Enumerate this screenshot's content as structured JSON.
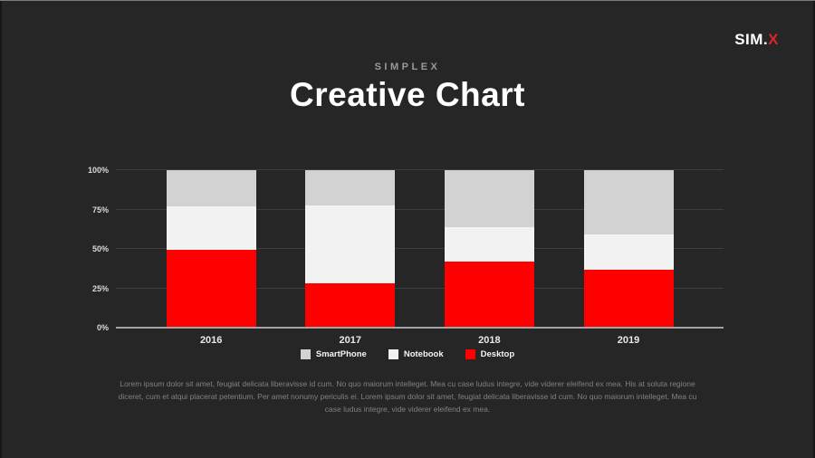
{
  "logo": {
    "prefix": "SIM.",
    "accent": "X"
  },
  "header": {
    "eyebrow": "SIMPLEX",
    "title": "Creative Chart"
  },
  "chart_data": {
    "type": "bar",
    "stacked": true,
    "percent_stacked": true,
    "title": "Creative Chart",
    "categories": [
      "2016",
      "2017",
      "2018",
      "2019"
    ],
    "series": [
      {
        "name": "SmartPhone",
        "color": "#d2d2d2",
        "values": [
          23.0,
          22.5,
          36.1,
          40.7
        ]
      },
      {
        "name": "Notebook",
        "color": "#f2f2f2",
        "values": [
          27.6,
          49.4,
          21.7,
          22.8
        ]
      },
      {
        "name": "Desktop",
        "color": "#fe0000",
        "values": [
          49.4,
          28.1,
          42.2,
          36.5
        ]
      }
    ],
    "y_ticks": [
      "0%",
      "25%",
      "50%",
      "75%",
      "100%"
    ],
    "ylim": [
      0,
      100
    ],
    "grid": true,
    "legend_position": "bottom",
    "stack_order_bottom_to_top": [
      "Desktop",
      "Notebook",
      "SmartPhone"
    ]
  },
  "description": "Lorem ipsum dolor sit amet, feugiat delicata liberavisse id cum. No quo maiorum intelleget. Mea cu case ludus integre, vide viderer eleifend ex mea. His at soluta regione diceret, cum et atqui placerat petentium. Per amet nonumy periculis ei. Lorem ipsum dolor sit amet, feugiat delicata liberavisse id cum. No quo maiorum intelleget. Mea cu case ludus integre, vide viderer eleifend ex mea.",
  "colors": {
    "background": "#262626",
    "accent_red": "#fe0000",
    "grid_line": "#3e3e3e",
    "axis_line": "#a3a3a3"
  }
}
